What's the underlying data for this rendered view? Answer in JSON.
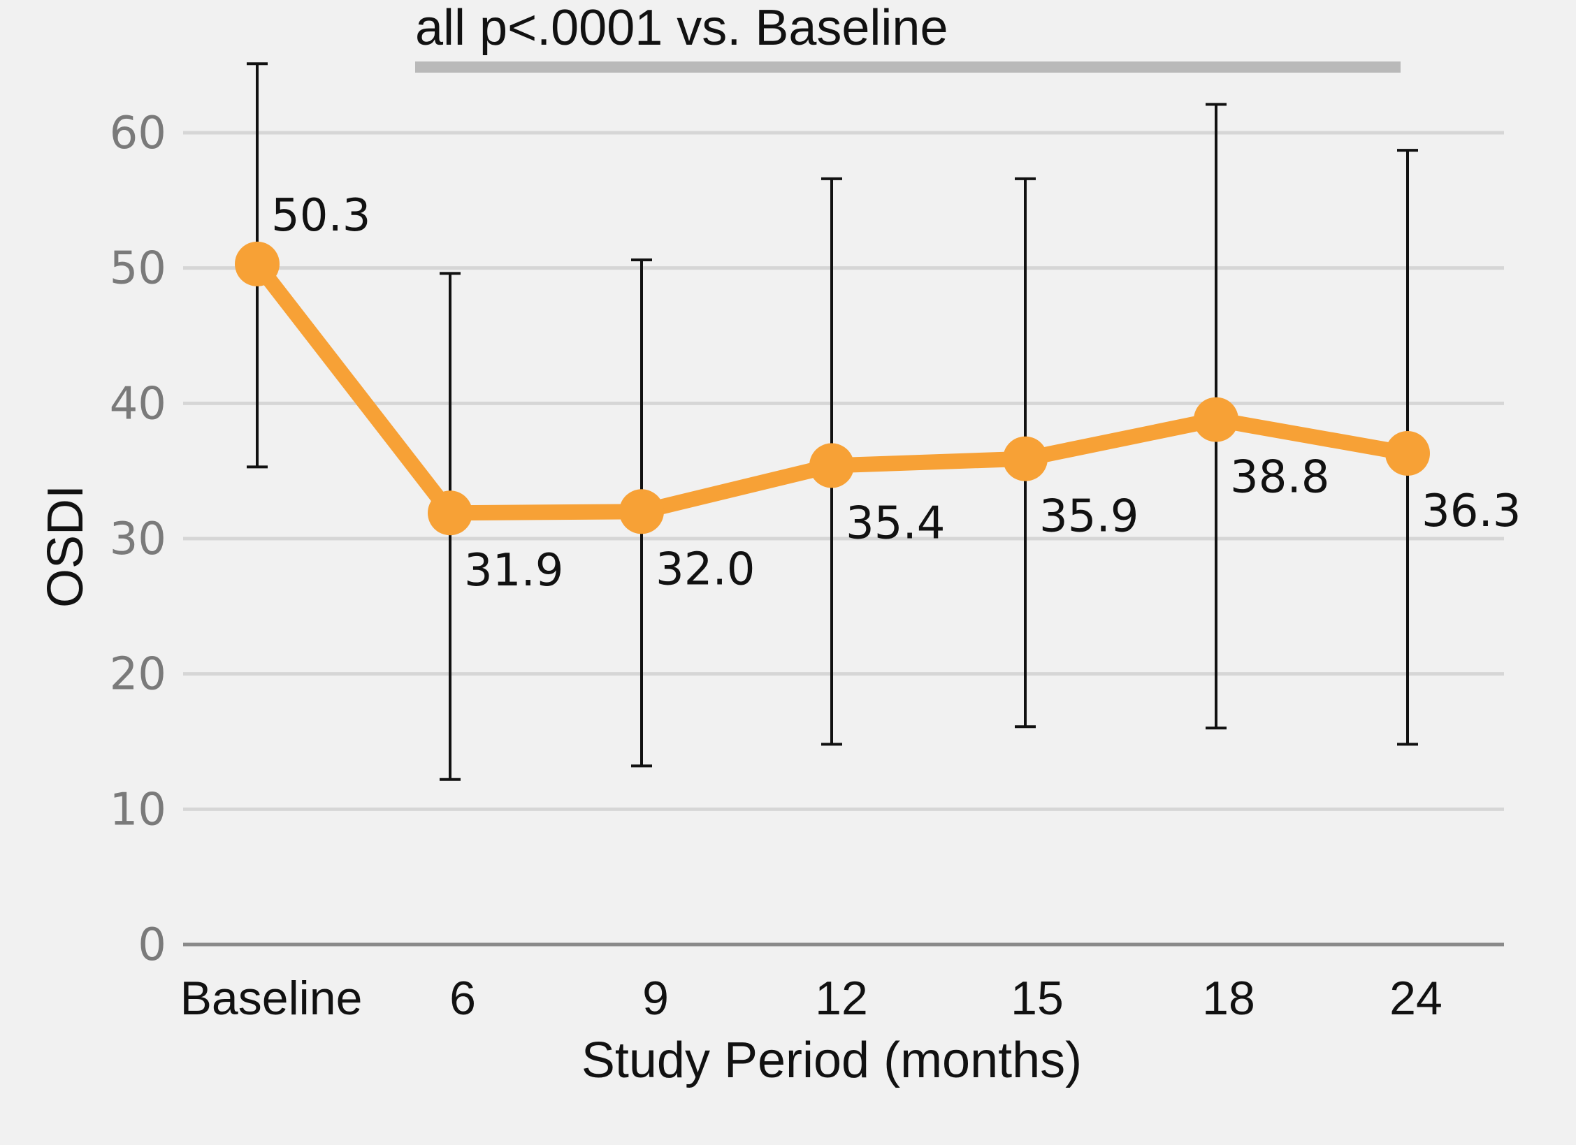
{
  "chart_data": {
    "type": "line",
    "categories": [
      "Baseline",
      "6",
      "9",
      "12",
      "15",
      "18",
      "24"
    ],
    "series": [
      {
        "values": [
          50.3,
          31.9,
          32.0,
          35.4,
          35.9,
          38.8,
          36.3
        ],
        "error_upper": [
          65.1,
          49.6,
          50.6,
          56.6,
          56.6,
          62.1,
          58.7
        ],
        "error_lower": [
          35.3,
          12.2,
          13.2,
          14.8,
          16.1,
          16.0,
          14.8
        ]
      }
    ],
    "data_labels": [
      "50.3",
      "31.9",
      "32.0",
      "35.4",
      "35.9",
      "38.8",
      "36.3"
    ],
    "xlabel": "Study Period (months)",
    "ylabel": "OSDI",
    "ylim": [
      0,
      65
    ],
    "yticks": [
      0,
      10,
      20,
      30,
      40,
      50,
      60
    ],
    "annotation": "all p<.0001 vs. Baseline",
    "grid": true,
    "colors": {
      "line": "#f7a136",
      "grid": "#d6d6d6",
      "axis": "#8a8a8a",
      "error_bar": "#111111",
      "annotation_bar": "#b9b9b9",
      "background": "#f1f1f1"
    }
  }
}
